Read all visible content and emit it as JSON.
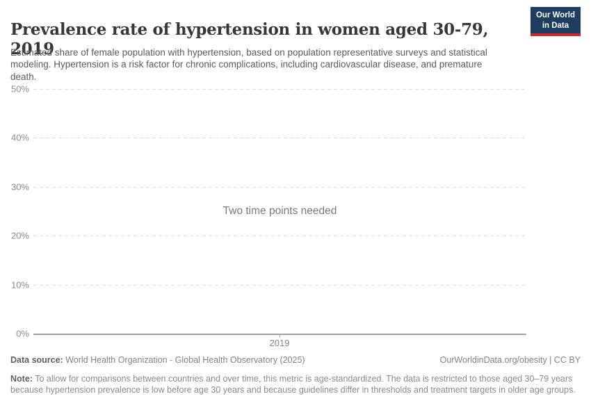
{
  "header": {
    "title": "Prevalence rate of hypertension in women aged 30-79, 2019",
    "subtitle": "Estimated share of female population with hypertension, based on population representative surveys and statistical modeling. Hypertension is a risk factor for chronic complications, including cardiovascular disease, and premature death.",
    "logo": {
      "line1": "Our World",
      "line2": "in Data",
      "bg_color": "#1d3d63",
      "accent_color": "#cc2a2a"
    }
  },
  "chart_data": {
    "type": "line",
    "title": "Prevalence rate of hypertension in women aged 30-79, 2019",
    "series": [],
    "empty_message": "Two time points needed",
    "x_ticks": [
      "2019"
    ],
    "y_ticks": [
      0,
      10,
      20,
      30,
      40,
      50
    ],
    "y_tick_suffix": "%",
    "ylim": [
      0,
      50
    ],
    "grid": "horizontal-dashed",
    "axis_color": "#a0a0a0",
    "gridline_color": "#dcdcdc"
  },
  "footer": {
    "datasource_label": "Data source:",
    "datasource_text": " World Health Organization - Global Health Observatory (2025)",
    "link_text": "OurWorldinData.org/obesity | CC BY",
    "note_label": "Note:",
    "note_text": " To allow for comparisons between countries and over time, this metric is age-standardized. The data is restricted to those aged 30–79 years because hypertension prevalence is low before age 30 years and because guidelines differ in thresholds and treatment targets in older age groups."
  }
}
